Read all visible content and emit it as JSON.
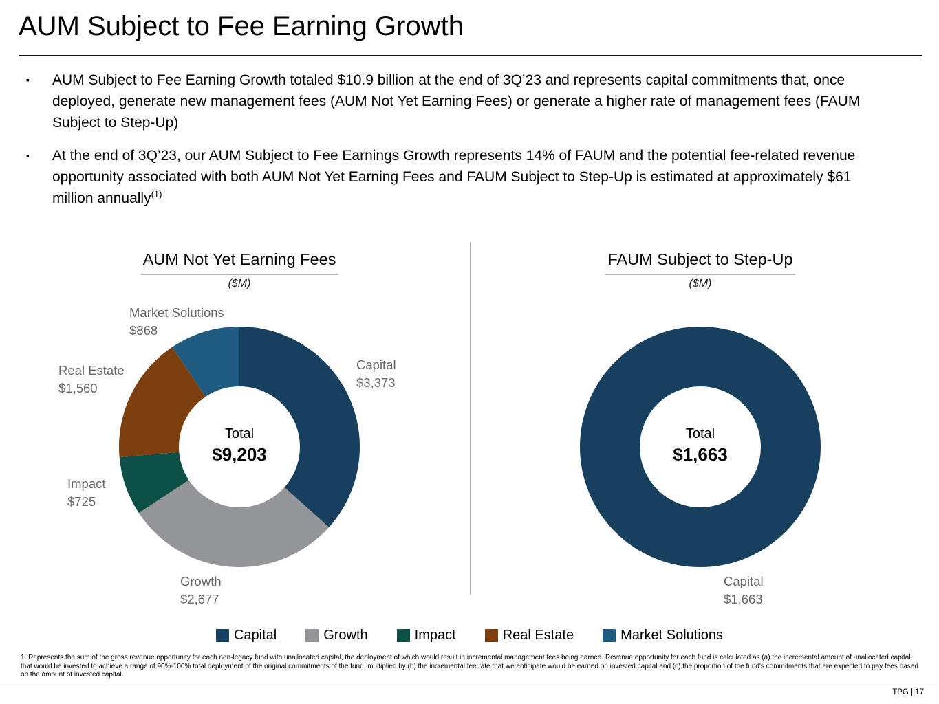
{
  "page": {
    "title": "AUM Subject to Fee Earning Growth",
    "footer": "TPG | 17"
  },
  "bullets": {
    "items": [
      {
        "text": "AUM Subject to Fee Earning Growth totaled $10.9 billion at the end of 3Q’23 and represents capital commitments that, once deployed, generate new management fees (AUM Not Yet Earning Fees) or generate a higher rate of management fees (FAUM Subject to Step-Up)"
      },
      {
        "text": "At the end of 3Q’23, our AUM Subject to Fee Earnings Growth represents 14% of FAUM and the potential fee-related revenue opportunity associated with both AUM Not Yet Earning Fees and FAUM Subject to Step-Up is estimated at approximately $61 million annually",
        "superscript": "(1)"
      }
    ]
  },
  "chart_data": [
    {
      "type": "pie",
      "style": "donut",
      "title": "AUM Not Yet Earning Fees",
      "subtitle": "($M)",
      "center_label": "Total",
      "center_value": "$9,203",
      "total": 9203,
      "start_angle": 0,
      "direction": "clockwise",
      "legend_position": "bottom",
      "segments": [
        {
          "name": "Capital",
          "value": 3373,
          "value_label": "$3,373",
          "color": "#17405f"
        },
        {
          "name": "Growth",
          "value": 2677,
          "value_label": "$2,677",
          "color": "#939598"
        },
        {
          "name": "Impact",
          "value": 725,
          "value_label": "$725",
          "color": "#0d5048"
        },
        {
          "name": "Real Estate",
          "value": 1560,
          "value_label": "$1,560",
          "color": "#7d3f10"
        },
        {
          "name": "Market Solutions",
          "value": 868,
          "value_label": "$868",
          "color": "#1f5b80"
        }
      ]
    },
    {
      "type": "pie",
      "style": "donut",
      "title": "FAUM Subject to Step-Up",
      "subtitle": "($M)",
      "center_label": "Total",
      "center_value": "$1,663",
      "total": 1663,
      "start_angle": 0,
      "direction": "clockwise",
      "segments": [
        {
          "name": "Capital",
          "value": 1663,
          "value_label": "$1,663",
          "color": "#17405f"
        }
      ]
    }
  ],
  "footnote": "1. Represents the sum of the gross revenue opportunity for each non-legacy fund with unallocated capital, the deployment of which would result in incremental management fees being earned. Revenue opportunity for each fund is calculated as (a) the incremental amount of unallocated capital that would be invested to achieve a range of 90%-100% total deployment of the original commitments of the fund, multiplied by (b) the incremental fee rate that we anticipate would be earned on invested capital and (c) the proportion of the fund's commitments that are expected to pay fees based on the amount of invested capital."
}
